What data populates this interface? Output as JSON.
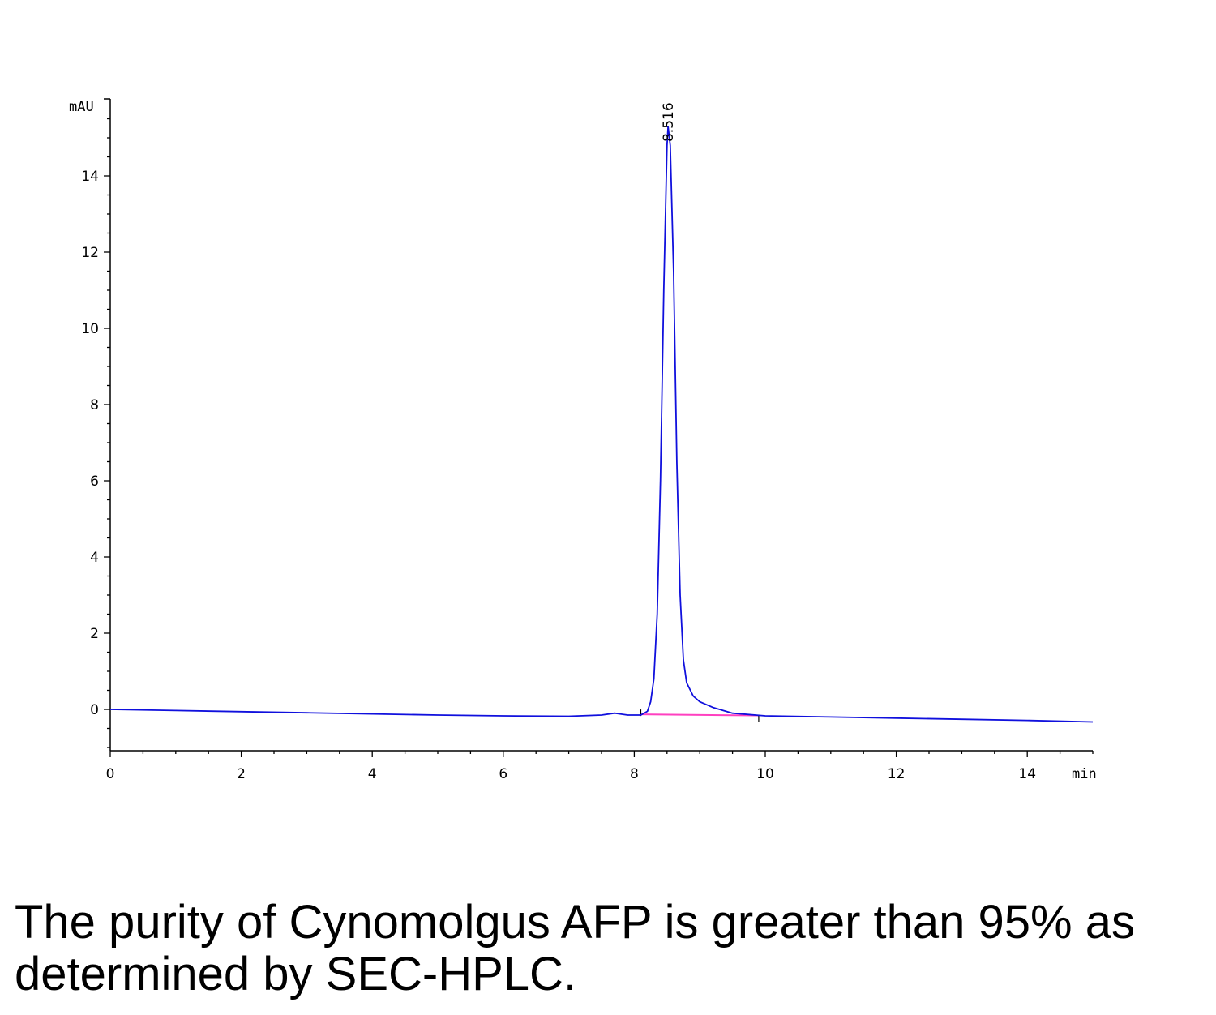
{
  "chart_data": {
    "type": "line",
    "title": "",
    "xlabel": "min",
    "ylabel": "mAU",
    "xlim": [
      0,
      15
    ],
    "ylim": [
      -1.1,
      16
    ],
    "x_ticks": [
      "0",
      "2",
      "4",
      "6",
      "8",
      "10",
      "12",
      "14"
    ],
    "y_ticks": [
      "0",
      "2",
      "4",
      "6",
      "8",
      "10",
      "12",
      "14"
    ],
    "peak_labels": [
      {
        "x": 8.516,
        "y": 15.3,
        "label": "8.516"
      }
    ],
    "series": [
      {
        "color": "#1010dd",
        "points": [
          [
            0,
            0.0
          ],
          [
            1,
            -0.03
          ],
          [
            2,
            -0.06
          ],
          [
            3,
            -0.09
          ],
          [
            4,
            -0.12
          ],
          [
            5,
            -0.15
          ],
          [
            6,
            -0.17
          ],
          [
            7,
            -0.18
          ],
          [
            7.5,
            -0.15
          ],
          [
            7.7,
            -0.1
          ],
          [
            7.9,
            -0.15
          ],
          [
            8.1,
            -0.15
          ],
          [
            8.2,
            -0.05
          ],
          [
            8.25,
            0.2
          ],
          [
            8.3,
            0.8
          ],
          [
            8.35,
            2.5
          ],
          [
            8.4,
            6.0
          ],
          [
            8.45,
            11.0
          ],
          [
            8.5,
            14.8
          ],
          [
            8.516,
            15.3
          ],
          [
            8.55,
            14.8
          ],
          [
            8.6,
            11.5
          ],
          [
            8.65,
            6.5
          ],
          [
            8.7,
            3.0
          ],
          [
            8.75,
            1.3
          ],
          [
            8.8,
            0.7
          ],
          [
            8.9,
            0.35
          ],
          [
            9.0,
            0.2
          ],
          [
            9.2,
            0.05
          ],
          [
            9.5,
            -0.1
          ],
          [
            10.0,
            -0.17
          ],
          [
            11,
            -0.2
          ],
          [
            12,
            -0.23
          ],
          [
            13,
            -0.26
          ],
          [
            14,
            -0.29
          ],
          [
            15,
            -0.33
          ]
        ]
      }
    ],
    "baseline": {
      "color": "#ff40c0",
      "points": [
        [
          8.1,
          -0.13
        ],
        [
          9.9,
          -0.16
        ]
      ]
    }
  },
  "caption": "The purity of Cynomolgus AFP is greater than 95% as determined by SEC-HPLC."
}
